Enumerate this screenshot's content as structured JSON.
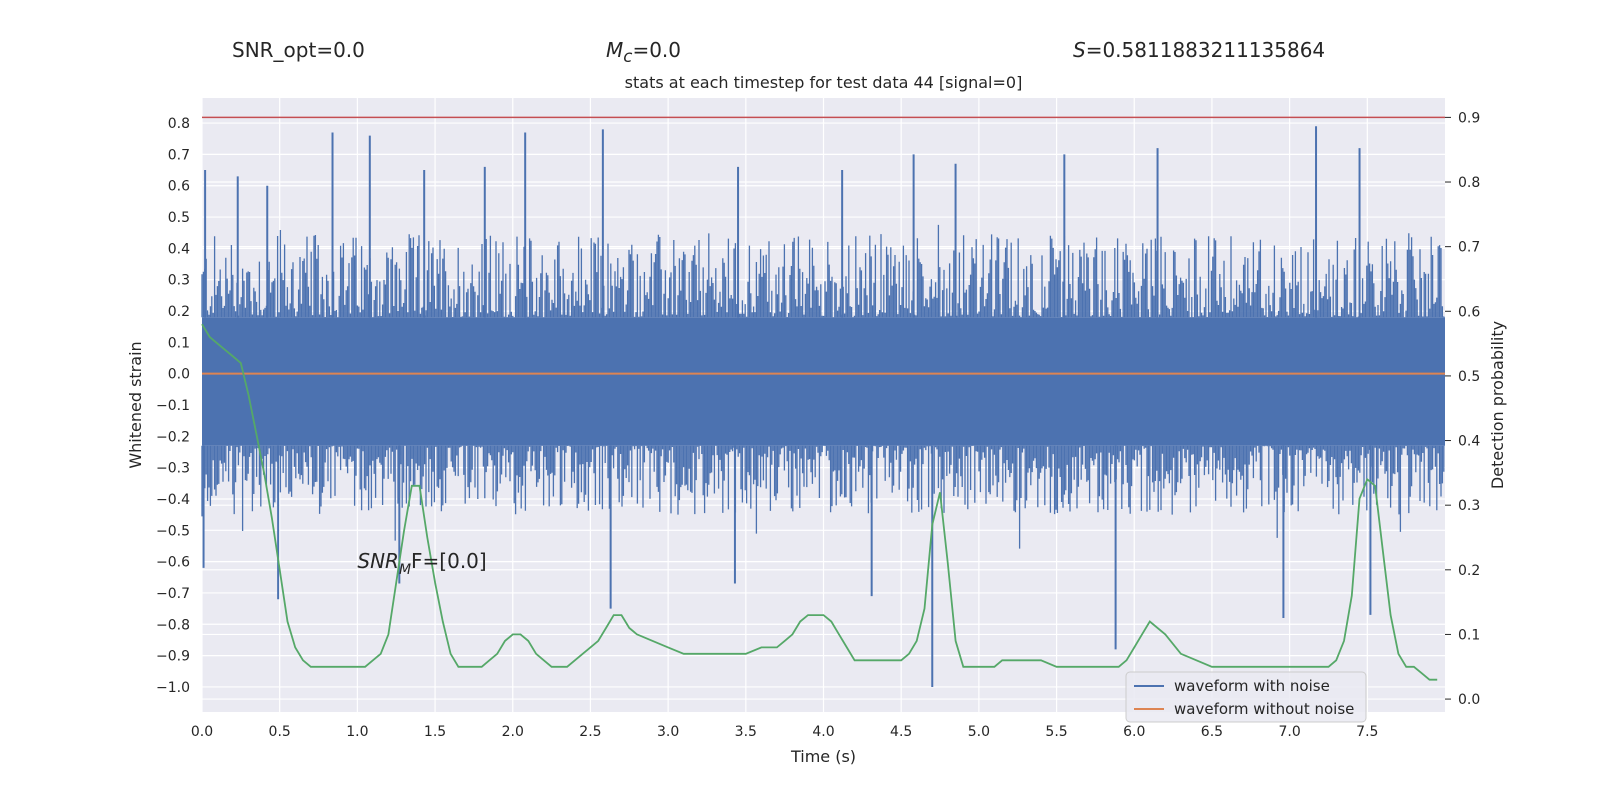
{
  "header": {
    "snr_opt": "SNR_opt=0.0",
    "mc_var": "M",
    "mc_sub": "c",
    "mc_rest": "=0.0",
    "s_var": "S",
    "s_rest": "=0.5811883211135864"
  },
  "colors": {
    "background": "#eaeaf2",
    "grid": "#ffffff",
    "noise": "#4c72b0",
    "clean": "#dd8452",
    "prob": "#55a868",
    "threshold": "#c44e52"
  },
  "chart_data": {
    "type": "line",
    "title": "stats at each timestep for test data 44 [signal=0]",
    "xlabel": "Time (s)",
    "ylabel": "Whitened strain",
    "y2label": "Detection probability",
    "xlim": [
      0.0,
      8.0
    ],
    "ylim": [
      -1.08,
      0.88
    ],
    "y2lim": [
      -0.02,
      0.93
    ],
    "grid": true,
    "legend_position": "lower-right",
    "x_ticks": [
      0.0,
      0.5,
      1.0,
      1.5,
      2.0,
      2.5,
      3.0,
      3.5,
      4.0,
      4.5,
      5.0,
      5.5,
      6.0,
      6.5,
      7.0,
      7.5
    ],
    "y_ticks": [
      0.8,
      0.7,
      0.6,
      0.5,
      0.4,
      0.3,
      0.2,
      0.1,
      0.0,
      -0.1,
      -0.2,
      -0.3,
      -0.4,
      -0.5,
      -0.6,
      -0.7,
      -0.8,
      -0.9,
      -1.0
    ],
    "y2_ticks": [
      0.9,
      0.8,
      0.7,
      0.6,
      0.5,
      0.4,
      0.3,
      0.2,
      0.1,
      0.0
    ],
    "annotation": {
      "text_var": "SNR",
      "text_sub": "M",
      "text_rest": "F=[0.0]",
      "x": 1.0,
      "y": -0.62
    },
    "threshold_line": {
      "y2": 0.9
    },
    "noise_envelope": {
      "dense_top": 0.18,
      "dense_bottom": -0.23,
      "upper_band": [
        0.18,
        0.45
      ],
      "lower_band": [
        -0.45,
        -0.23
      ],
      "peaks": [
        {
          "x": 0.02,
          "y": 0.65
        },
        {
          "x": 0.23,
          "y": 0.63
        },
        {
          "x": 0.42,
          "y": 0.6
        },
        {
          "x": 0.84,
          "y": 0.77
        },
        {
          "x": 1.08,
          "y": 0.76
        },
        {
          "x": 1.43,
          "y": 0.65
        },
        {
          "x": 1.82,
          "y": 0.66
        },
        {
          "x": 2.08,
          "y": 0.77
        },
        {
          "x": 2.58,
          "y": 0.78
        },
        {
          "x": 3.45,
          "y": 0.66
        },
        {
          "x": 4.12,
          "y": 0.65
        },
        {
          "x": 4.58,
          "y": 0.7
        },
        {
          "x": 4.85,
          "y": 0.67
        },
        {
          "x": 5.55,
          "y": 0.7
        },
        {
          "x": 6.15,
          "y": 0.72
        },
        {
          "x": 7.17,
          "y": 0.79
        },
        {
          "x": 7.45,
          "y": 0.72
        },
        {
          "x": 0.01,
          "y": -0.62
        },
        {
          "x": 0.49,
          "y": -0.72
        },
        {
          "x": 1.27,
          "y": -0.67
        },
        {
          "x": 2.63,
          "y": -0.75
        },
        {
          "x": 3.43,
          "y": -0.67
        },
        {
          "x": 4.31,
          "y": -0.71
        },
        {
          "x": 4.7,
          "y": -1.0
        },
        {
          "x": 5.88,
          "y": -0.88
        },
        {
          "x": 6.96,
          "y": -0.78
        },
        {
          "x": 7.52,
          "y": -0.77
        }
      ]
    },
    "series": [
      {
        "name": "waveform with noise",
        "role": "noise"
      },
      {
        "name": "waveform without noise",
        "role": "clean",
        "constant_y": 0.0
      },
      {
        "role": "probability",
        "axis": "right",
        "x": [
          0.0,
          0.05,
          0.1,
          0.15,
          0.2,
          0.25,
          0.3,
          0.35,
          0.4,
          0.45,
          0.5,
          0.55,
          0.6,
          0.65,
          0.7,
          0.75,
          0.8,
          0.9,
          1.0,
          1.05,
          1.1,
          1.15,
          1.2,
          1.25,
          1.3,
          1.35,
          1.4,
          1.45,
          1.5,
          1.55,
          1.6,
          1.65,
          1.7,
          1.75,
          1.8,
          1.85,
          1.9,
          1.95,
          2.0,
          2.05,
          2.1,
          2.15,
          2.2,
          2.25,
          2.3,
          2.35,
          2.4,
          2.45,
          2.5,
          2.55,
          2.6,
          2.65,
          2.7,
          2.75,
          2.8,
          2.9,
          3.0,
          3.1,
          3.2,
          3.3,
          3.4,
          3.5,
          3.6,
          3.7,
          3.75,
          3.8,
          3.85,
          3.9,
          3.95,
          4.0,
          4.05,
          4.1,
          4.15,
          4.2,
          4.25,
          4.3,
          4.35,
          4.4,
          4.45,
          4.5,
          4.55,
          4.6,
          4.65,
          4.7,
          4.75,
          4.8,
          4.85,
          4.9,
          4.95,
          5.0,
          5.05,
          5.1,
          5.15,
          5.2,
          5.3,
          5.4,
          5.5,
          5.6,
          5.7,
          5.75,
          5.8,
          5.85,
          5.9,
          5.95,
          6.0,
          6.05,
          6.1,
          6.2,
          6.3,
          6.4,
          6.5,
          6.6,
          6.7,
          6.8,
          6.9,
          7.0,
          7.1,
          7.15,
          7.2,
          7.25,
          7.3,
          7.35,
          7.4,
          7.45,
          7.5,
          7.55,
          7.6,
          7.65,
          7.7,
          7.75,
          7.8,
          7.85,
          7.9,
          7.95
        ],
        "y": [
          0.58,
          0.56,
          0.55,
          0.54,
          0.53,
          0.52,
          0.47,
          0.41,
          0.35,
          0.28,
          0.2,
          0.12,
          0.08,
          0.06,
          0.05,
          0.05,
          0.05,
          0.05,
          0.05,
          0.05,
          0.06,
          0.07,
          0.1,
          0.18,
          0.26,
          0.33,
          0.33,
          0.25,
          0.18,
          0.12,
          0.07,
          0.05,
          0.05,
          0.05,
          0.05,
          0.06,
          0.07,
          0.09,
          0.1,
          0.1,
          0.09,
          0.07,
          0.06,
          0.05,
          0.05,
          0.05,
          0.06,
          0.07,
          0.08,
          0.09,
          0.11,
          0.13,
          0.13,
          0.11,
          0.1,
          0.09,
          0.08,
          0.07,
          0.07,
          0.07,
          0.07,
          0.07,
          0.08,
          0.08,
          0.09,
          0.1,
          0.12,
          0.13,
          0.13,
          0.13,
          0.12,
          0.1,
          0.08,
          0.06,
          0.06,
          0.06,
          0.06,
          0.06,
          0.06,
          0.06,
          0.07,
          0.09,
          0.14,
          0.27,
          0.32,
          0.21,
          0.09,
          0.05,
          0.05,
          0.05,
          0.05,
          0.05,
          0.06,
          0.06,
          0.06,
          0.06,
          0.05,
          0.05,
          0.05,
          0.05,
          0.05,
          0.05,
          0.05,
          0.06,
          0.08,
          0.1,
          0.12,
          0.1,
          0.07,
          0.06,
          0.05,
          0.05,
          0.05,
          0.05,
          0.05,
          0.05,
          0.05,
          0.05,
          0.05,
          0.05,
          0.06,
          0.09,
          0.16,
          0.31,
          0.34,
          0.33,
          0.23,
          0.13,
          0.07,
          0.05,
          0.05,
          0.04,
          0.03,
          0.03
        ]
      }
    ]
  }
}
